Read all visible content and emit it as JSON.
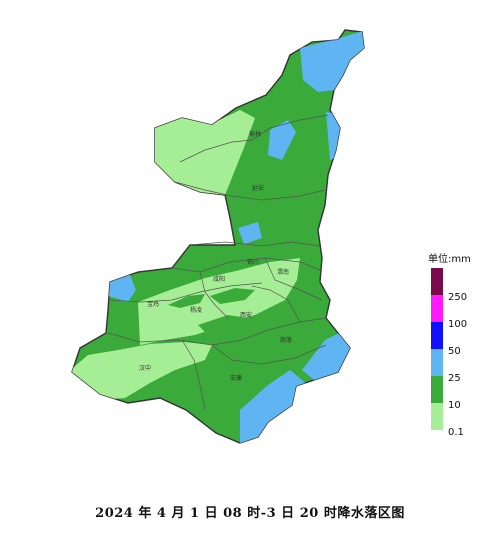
{
  "caption": "2024 年 4 月 1 日 08 时-3 日 20 时降水落区图",
  "legend": {
    "title": "单位:mm",
    "bins": [
      {
        "label": "250",
        "color": "#7a0a4a"
      },
      {
        "label": "100",
        "color": "#ff1aff"
      },
      {
        "label": "50",
        "color": "#1010ff"
      },
      {
        "label": "25",
        "color": "#5fb4f2"
      },
      {
        "label": "10",
        "color": "#3aaa3a"
      },
      {
        "label": "0.1",
        "color": "#a6ee96"
      }
    ]
  },
  "colors": {
    "light_green": "#a6ee96",
    "green": "#3aaa3a",
    "blue": "#5fb4f2",
    "boundary": "#555555"
  },
  "cities": {
    "yulin": "榆林",
    "yanan": "延安",
    "tongchuan": "铜川",
    "weinan": "渭南",
    "baoji": "宝鸡",
    "xianyang": "咸阳",
    "yangling": "杨凌",
    "xian": "西安",
    "shangluo": "商洛",
    "hanzhong": "汉中",
    "ankang": "安康"
  }
}
